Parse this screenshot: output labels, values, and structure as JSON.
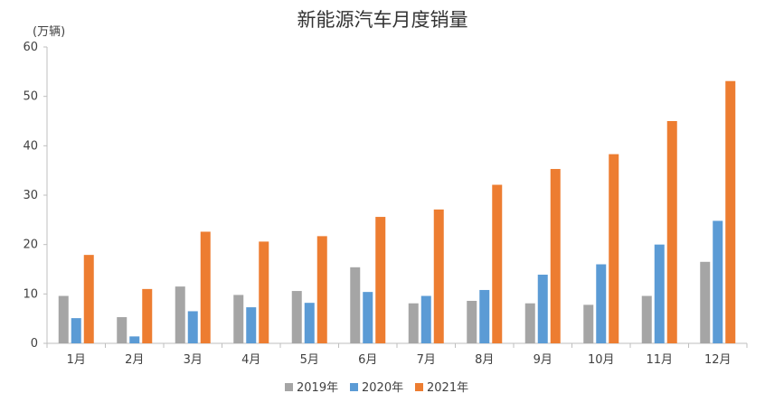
{
  "chart_data": {
    "type": "bar",
    "title": "新能源汽车月度销量",
    "ylabel": "(万辆)",
    "xlabel": "",
    "ylim": [
      0,
      60
    ],
    "yticks": [
      0,
      10,
      20,
      30,
      40,
      50,
      60
    ],
    "grid": false,
    "legend_position": "bottom",
    "categories": [
      "1月",
      "2月",
      "3月",
      "4月",
      "5月",
      "6月",
      "7月",
      "8月",
      "9月",
      "10月",
      "11月",
      "12月"
    ],
    "series": [
      {
        "name": "2019年",
        "color": "#A5A5A5",
        "values": [
          9.6,
          5.3,
          11.5,
          9.8,
          10.6,
          15.4,
          8.1,
          8.6,
          8.1,
          7.8,
          9.6,
          16.5
        ]
      },
      {
        "name": "2020年",
        "color": "#5B9BD5",
        "values": [
          5.1,
          1.4,
          6.5,
          7.3,
          8.2,
          10.4,
          9.6,
          10.8,
          13.9,
          16.0,
          20.0,
          24.8
        ]
      },
      {
        "name": "2021年",
        "color": "#ED7D31",
        "values": [
          17.9,
          11.0,
          22.6,
          20.6,
          21.7,
          25.6,
          27.1,
          32.1,
          35.3,
          38.3,
          45.0,
          53.1
        ]
      }
    ]
  }
}
